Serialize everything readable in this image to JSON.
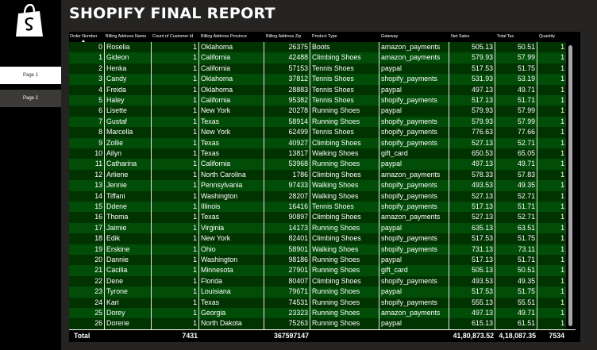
{
  "nav": {
    "logo": "shopify-logo",
    "pages": [
      {
        "label": "Page 1",
        "active": true
      },
      {
        "label": "Page 2",
        "active": false
      }
    ]
  },
  "report": {
    "title": "SHOPIFY FINAL REPORT"
  },
  "table": {
    "columns": [
      "Order Number",
      "Billing Address Name",
      "Count of Customer Id",
      "Billing Address Province",
      "Billing Address Zip",
      "Product Type",
      "Gateway",
      "Net Sales",
      "Total Tax",
      "Quantity"
    ],
    "rows": [
      [
        "0",
        "Roselia",
        "1",
        "Oklahoma",
        "26375",
        "Boots",
        "amazon_payments",
        "505.13",
        "50.51",
        "1"
      ],
      [
        "1",
        "Gideon",
        "1",
        "California",
        "42488",
        "Climbing Shoes",
        "amazon_payments",
        "579.93",
        "57.99",
        "1"
      ],
      [
        "2",
        "Henka",
        "1",
        "California",
        "57153",
        "Tennis Shoes",
        "paypal",
        "517.53",
        "51.75",
        "1"
      ],
      [
        "3",
        "Candy",
        "1",
        "Oklahoma",
        "37812",
        "Tennis Shoes",
        "shopify_payments",
        "531.93",
        "53.19",
        "1"
      ],
      [
        "4",
        "Freida",
        "1",
        "Oklahoma",
        "28883",
        "Tennis Shoes",
        "paypal",
        "497.13",
        "49.71",
        "1"
      ],
      [
        "5",
        "Haley",
        "1",
        "California",
        "95382",
        "Tennis Shoes",
        "shopify_payments",
        "517.13",
        "51.71",
        "1"
      ],
      [
        "6",
        "Lisette",
        "1",
        "New York",
        "20278",
        "Running Shoes",
        "paypal",
        "579.93",
        "57.99",
        "1"
      ],
      [
        "7",
        "Gustaf",
        "1",
        "Texas",
        "58914",
        "Running Shoes",
        "shopify_payments",
        "579.93",
        "57.99",
        "1"
      ],
      [
        "8",
        "Marcella",
        "1",
        "New York",
        "62499",
        "Tennis Shoes",
        "shopify_payments",
        "776.63",
        "77.66",
        "1"
      ],
      [
        "9",
        "Zollie",
        "1",
        "Texas",
        "40927",
        "Climbing Shoes",
        "shopify_payments",
        "527.13",
        "52.71",
        "1"
      ],
      [
        "10",
        "Ailyn",
        "1",
        "Texas",
        "13817",
        "Walking Shoes",
        "gift_card",
        "650.53",
        "65.05",
        "1"
      ],
      [
        "11",
        "Catharina",
        "1",
        "California",
        "53968",
        "Running Shoes",
        "paypal",
        "497.13",
        "49.71",
        "1"
      ],
      [
        "12",
        "Arliene",
        "1",
        "North Carolina",
        "1786",
        "Climbing Shoes",
        "amazon_payments",
        "578.33",
        "57.83",
        "1"
      ],
      [
        "13",
        "Jennie",
        "1",
        "Pennsylvania",
        "97433",
        "Walking Shoes",
        "shopify_payments",
        "493.53",
        "49.35",
        "1"
      ],
      [
        "14",
        "Tiffani",
        "1",
        "Washington",
        "28207",
        "Walking Shoes",
        "shopify_payments",
        "527.13",
        "52.71",
        "1"
      ],
      [
        "15",
        "Ddene",
        "1",
        "Illinois",
        "16416",
        "Tennis Shoes",
        "shopify_payments",
        "517.13",
        "51.71",
        "1"
      ],
      [
        "16",
        "Thoma",
        "1",
        "Texas",
        "90897",
        "Climbing Shoes",
        "amazon_payments",
        "527.13",
        "52.71",
        "1"
      ],
      [
        "17",
        "Jaimie",
        "1",
        "Virginia",
        "14173",
        "Running Shoes",
        "paypal",
        "635.13",
        "63.51",
        "1"
      ],
      [
        "18",
        "Edik",
        "1",
        "New York",
        "82401",
        "Climbing Shoes",
        "shopify_payments",
        "517.53",
        "51.75",
        "1"
      ],
      [
        "19",
        "Erskine",
        "1",
        "Ohio",
        "58901",
        "Walking Shoes",
        "shopify_payments",
        "731.13",
        "73.11",
        "1"
      ],
      [
        "20",
        "Dannie",
        "1",
        "Washington",
        "98186",
        "Running Shoes",
        "paypal",
        "517.13",
        "51.71",
        "1"
      ],
      [
        "21",
        "Cacilia",
        "1",
        "Minnesota",
        "27901",
        "Running Shoes",
        "gift_card",
        "505.13",
        "50.51",
        "1"
      ],
      [
        "22",
        "Dene",
        "1",
        "Florida",
        "80407",
        "Climbing Shoes",
        "shopify_payments",
        "493.53",
        "49.35",
        "1"
      ],
      [
        "23",
        "Tyrone",
        "1",
        "Louisiana",
        "79671",
        "Running Shoes",
        "paypal",
        "517.53",
        "51.75",
        "1"
      ],
      [
        "24",
        "Kari",
        "1",
        "Texas",
        "74531",
        "Running Shoes",
        "shopify_payments",
        "555.13",
        "55.51",
        "1"
      ],
      [
        "25",
        "Dorey",
        "1",
        "Georgia",
        "23323",
        "Running Shoes",
        "amazon_payments",
        "497.13",
        "49.71",
        "1"
      ],
      [
        "26",
        "Dorene",
        "1",
        "North Dakota",
        "75263",
        "Running Shoes",
        "paypal",
        "615.13",
        "61.51",
        "1"
      ]
    ],
    "totals": {
      "label": "Total",
      "count": "7431",
      "zip": "367597147",
      "net_sales": "41,80,873.52",
      "total_tax": "4,18,087.35",
      "quantity": "7534"
    }
  },
  "colors": {
    "row_dark": "#013300",
    "row_light": "#014d08",
    "background": "#252423"
  }
}
